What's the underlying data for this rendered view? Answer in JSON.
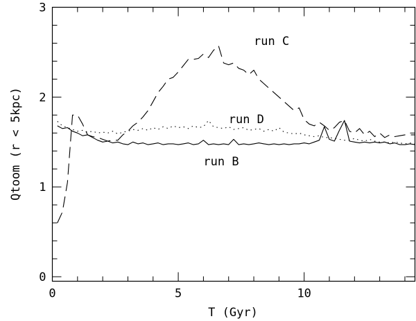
{
  "chart_data": {
    "type": "line",
    "title": "",
    "xlabel": "T (Gyr)",
    "ylabel": "Qtoom (r < 5kpc)",
    "xlim": [
      0,
      14.4
    ],
    "ylim": [
      -0.05,
      3.0
    ],
    "xticks": [
      0,
      5,
      10
    ],
    "xtick_labels": [
      "0",
      "5",
      "10"
    ],
    "yticks": [
      0,
      1,
      2,
      3
    ],
    "ytick_labels": [
      "0",
      "1",
      "2",
      "3"
    ],
    "x_minor_step": 1,
    "y_minor_step": 0.2,
    "grid": false,
    "legend": "none",
    "annotations": [
      {
        "text": "run C",
        "x": 8.0,
        "y": 2.58
      },
      {
        "text": "run D",
        "x": 7.0,
        "y": 1.71
      },
      {
        "text": "run B",
        "x": 6.0,
        "y": 1.24
      }
    ],
    "series": [
      {
        "style": "solid",
        "x": [
          0.2,
          0.4,
          0.6,
          0.8,
          1.0,
          1.2,
          1.4,
          1.6,
          1.8,
          2.0,
          2.2,
          2.4,
          2.6,
          2.8,
          3.0,
          3.2,
          3.4,
          3.6,
          3.8,
          4.0,
          4.2,
          4.4,
          4.6,
          4.8,
          5.0,
          5.2,
          5.4,
          5.6,
          5.8,
          6.0,
          6.2,
          6.4,
          6.6,
          6.8,
          7.0,
          7.2,
          7.4,
          7.6,
          7.8,
          8.0,
          8.2,
          8.4,
          8.6,
          8.8,
          9.0,
          9.2,
          9.4,
          9.6,
          9.8,
          10.0,
          10.2,
          10.4,
          10.6,
          10.8,
          11.0,
          11.2,
          11.4,
          11.6,
          11.8,
          12.0,
          12.2,
          12.4,
          12.6,
          12.8,
          13.0,
          13.2,
          13.4,
          13.6,
          13.8,
          14.0,
          14.2,
          14.4
        ],
        "y": [
          1.68,
          1.65,
          1.66,
          1.62,
          1.6,
          1.57,
          1.58,
          1.55,
          1.52,
          1.5,
          1.51,
          1.49,
          1.5,
          1.48,
          1.47,
          1.5,
          1.48,
          1.49,
          1.47,
          1.48,
          1.49,
          1.47,
          1.48,
          1.48,
          1.47,
          1.48,
          1.49,
          1.47,
          1.48,
          1.52,
          1.47,
          1.48,
          1.47,
          1.48,
          1.47,
          1.53,
          1.47,
          1.48,
          1.47,
          1.48,
          1.49,
          1.48,
          1.47,
          1.48,
          1.47,
          1.48,
          1.47,
          1.48,
          1.48,
          1.49,
          1.48,
          1.5,
          1.52,
          1.67,
          1.53,
          1.51,
          1.63,
          1.74,
          1.51,
          1.5,
          1.49,
          1.5,
          1.49,
          1.5,
          1.49,
          1.5,
          1.48,
          1.49,
          1.47,
          1.47,
          1.48,
          1.47
        ]
      },
      {
        "style": "dashed",
        "x": [
          0.2,
          0.4,
          0.6,
          0.8,
          1.0,
          1.2,
          1.4,
          1.6,
          1.8,
          2.0,
          2.2,
          2.4,
          2.6,
          2.8,
          3.0,
          3.2,
          3.4,
          3.6,
          3.8,
          4.0,
          4.2,
          4.4,
          4.6,
          4.8,
          5.0,
          5.2,
          5.4,
          5.6,
          5.8,
          6.0,
          6.2,
          6.4,
          6.6,
          6.8,
          7.0,
          7.2,
          7.4,
          7.6,
          7.8,
          8.0,
          8.2,
          8.4,
          8.6,
          8.8,
          9.0,
          9.2,
          9.4,
          9.6,
          9.8,
          10.0,
          10.2,
          10.4,
          10.6,
          10.8,
          11.0,
          11.2,
          11.4,
          11.6,
          11.8,
          12.0,
          12.2,
          12.4,
          12.6,
          12.8,
          13.0,
          13.2,
          13.4,
          13.6,
          13.8,
          14.0,
          14.2,
          14.4
        ],
        "y": [
          0.6,
          0.72,
          1.05,
          1.8,
          1.8,
          1.7,
          1.58,
          1.56,
          1.55,
          1.53,
          1.51,
          1.52,
          1.52,
          1.58,
          1.62,
          1.68,
          1.72,
          1.78,
          1.85,
          1.95,
          2.05,
          2.12,
          2.2,
          2.22,
          2.28,
          2.35,
          2.42,
          2.42,
          2.43,
          2.48,
          2.44,
          2.52,
          2.57,
          2.38,
          2.36,
          2.38,
          2.32,
          2.3,
          2.25,
          2.3,
          2.2,
          2.15,
          2.1,
          2.05,
          2.0,
          1.95,
          1.9,
          1.85,
          1.88,
          1.75,
          1.7,
          1.68,
          1.72,
          1.68,
          1.63,
          1.66,
          1.72,
          1.74,
          1.62,
          1.6,
          1.65,
          1.58,
          1.62,
          1.56,
          1.6,
          1.55,
          1.58,
          1.56,
          1.57,
          1.58,
          1.58,
          1.58
        ]
      },
      {
        "style": "dotted",
        "x": [
          0.2,
          0.4,
          0.6,
          0.8,
          1.0,
          1.2,
          1.4,
          1.6,
          1.8,
          2.0,
          2.2,
          2.4,
          2.6,
          2.8,
          3.0,
          3.2,
          3.4,
          3.6,
          3.8,
          4.0,
          4.2,
          4.4,
          4.6,
          4.8,
          5.0,
          5.2,
          5.4,
          5.6,
          5.8,
          6.0,
          6.2,
          6.4,
          6.6,
          6.8,
          7.0,
          7.2,
          7.4,
          7.6,
          7.8,
          8.0,
          8.2,
          8.4,
          8.6,
          8.8,
          9.0,
          9.2,
          9.4,
          9.6,
          9.8,
          10.0,
          10.2,
          10.4,
          10.6,
          10.8,
          11.0,
          11.2,
          11.4,
          11.6,
          11.8,
          12.0,
          12.2,
          12.4,
          12.6,
          12.8,
          13.0,
          13.2,
          13.4,
          13.6,
          13.8,
          14.0,
          14.2,
          14.4
        ],
        "y": [
          1.73,
          1.68,
          1.66,
          1.64,
          1.62,
          1.63,
          1.61,
          1.62,
          1.6,
          1.61,
          1.6,
          1.62,
          1.59,
          1.61,
          1.62,
          1.64,
          1.63,
          1.65,
          1.63,
          1.66,
          1.64,
          1.67,
          1.65,
          1.68,
          1.66,
          1.67,
          1.65,
          1.68,
          1.66,
          1.67,
          1.74,
          1.67,
          1.66,
          1.65,
          1.67,
          1.64,
          1.65,
          1.66,
          1.63,
          1.64,
          1.65,
          1.62,
          1.64,
          1.62,
          1.66,
          1.61,
          1.6,
          1.59,
          1.6,
          1.58,
          1.57,
          1.56,
          1.57,
          1.55,
          1.55,
          1.54,
          1.53,
          1.52,
          1.52,
          1.54,
          1.52,
          1.51,
          1.53,
          1.51,
          1.5,
          1.5,
          1.49,
          1.5,
          1.49,
          1.48,
          1.49,
          1.48
        ]
      }
    ]
  }
}
